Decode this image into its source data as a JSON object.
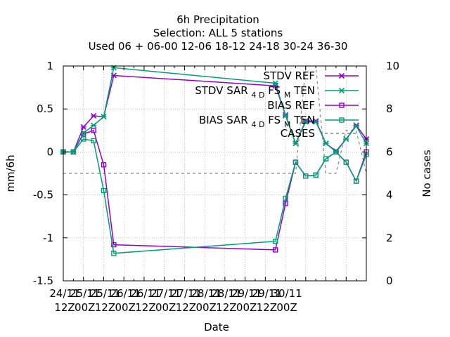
{
  "chart_data": {
    "type": "line",
    "title": [
      "6h Precipitation",
      "Selection: ALL       5 stations",
      "Used  06 + 06-00 12-06 18-12 24-18 30-24 36-30"
    ],
    "xlabel": "Date",
    "ylabel": "mm/6h",
    "y2label": "No cases",
    "ylim": [
      -1.5,
      1
    ],
    "y2lim": [
      0,
      10
    ],
    "yticks": [
      "1",
      "0.5",
      "0",
      "-0.5",
      "-1",
      "-1.5"
    ],
    "y2ticks": [
      "10",
      "8",
      "6",
      "4",
      "2",
      "0"
    ],
    "xticks": [
      [
        "24/11",
        "12Z"
      ],
      [
        "25/11",
        "00Z"
      ],
      [
        "25/11",
        "12Z"
      ],
      [
        "26/11",
        "00Z"
      ],
      [
        "26/11",
        "12Z"
      ],
      [
        "27/11",
        "00Z"
      ],
      [
        "27/11",
        "12Z"
      ],
      [
        "28/11",
        "00Z"
      ],
      [
        "28/11",
        "12Z"
      ],
      [
        "29/11",
        "00Z"
      ],
      [
        "29/11",
        "12Z"
      ],
      [
        "30/11",
        "00Z"
      ]
    ],
    "x_unit": "hours since 24/11 12Z",
    "x": [
      0,
      6,
      12,
      18,
      24,
      30,
      36,
      126,
      132,
      138,
      144,
      150,
      156,
      162,
      168,
      174,
      180
    ],
    "grid": true,
    "legend_position": "top-right",
    "series": [
      {
        "name": "STDV REF",
        "color": "#9400d3",
        "marker": "x",
        "dash": "",
        "values": [
          0,
          0,
          0.29,
          0.42,
          0.41,
          0.89,
          null,
          0.77,
          0.43,
          0.1,
          0.36,
          0.36,
          0.1,
          0.01,
          0.15,
          0.31,
          0.15
        ]
      },
      {
        "name": "STDV SAR_4D_FS_M_TEN",
        "color": "#009e73",
        "marker": "x",
        "dash": "",
        "values": [
          0,
          0,
          0.22,
          0.31,
          0.41,
          0.98,
          null,
          0.8,
          0.42,
          0.1,
          0.35,
          0.35,
          0.1,
          0.0,
          0.15,
          0.3,
          0.1
        ]
      },
      {
        "name": "BIAS REF",
        "color": "#9400d3",
        "marker": "square",
        "dash": "",
        "values": [
          0,
          0,
          0.21,
          0.25,
          -0.15,
          -1.08,
          null,
          -1.14,
          -0.6,
          -0.12,
          -0.28,
          -0.27,
          -0.08,
          0.0,
          -0.12,
          -0.34,
          0.0
        ]
      },
      {
        "name": "BIAS SAR_4D_FS_M_TEN",
        "color": "#009e73",
        "marker": "square",
        "dash": "",
        "values": [
          0,
          0,
          0.15,
          0.13,
          -0.45,
          -1.18,
          null,
          -1.04,
          -0.54,
          -0.12,
          -0.28,
          -0.27,
          -0.08,
          0.0,
          -0.12,
          -0.34,
          -0.03
        ]
      },
      {
        "name": "CASES",
        "color": "#888888",
        "marker": "none",
        "dash": "4,4",
        "axis": "y2",
        "values": [
          5,
          5,
          5,
          5,
          5,
          5,
          null,
          5,
          5,
          5,
          10,
          10,
          5,
          5,
          7,
          7,
          5
        ]
      }
    ],
    "legend": [
      {
        "label": "STDV REF",
        "color": "#9400d3",
        "marker": "x",
        "dash": ""
      },
      {
        "label": "STDV SAR",
        "sub1": "4 D",
        "mid": "FS",
        "sub2": "M",
        "tail": "TEN",
        "color": "#009e73",
        "marker": "x",
        "dash": ""
      },
      {
        "label": "BIAS REF",
        "color": "#9400d3",
        "marker": "square",
        "dash": ""
      },
      {
        "label": "BIAS SAR",
        "sub1": "4 D",
        "mid": "FS",
        "sub2": "M",
        "tail": "TEN",
        "color": "#009e73",
        "marker": "square",
        "dash": ""
      },
      {
        "label": "CASES",
        "color": "#888888",
        "marker": "none",
        "dash": "4,4"
      }
    ]
  }
}
